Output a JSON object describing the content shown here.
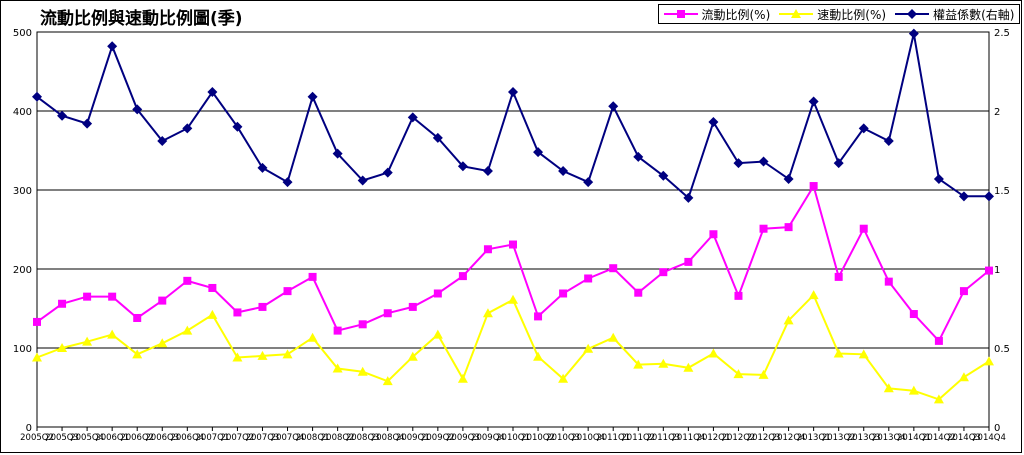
{
  "title": "流動比例與速動比例圖(季)",
  "legend_position": "top-right",
  "colors": {
    "current_ratio": "#ff00ff",
    "quick_ratio": "#ffff00",
    "equity_multiplier": "#000080",
    "grid": "#000000"
  },
  "chart_data": {
    "type": "line",
    "title": "流動比例與速動比例圖(季)",
    "xlabel": "",
    "ylabel": "",
    "y_left_lim": [
      0,
      500
    ],
    "y_left_ticks": [
      "0",
      "100",
      "200",
      "300",
      "400",
      "500"
    ],
    "y_right_lim": [
      0,
      2.5
    ],
    "y_right_ticks": [
      "0",
      "0.5",
      "1",
      "1.5",
      "2",
      "2.5"
    ],
    "grid": true,
    "categories": [
      "2005Q2",
      "2005Q3",
      "2005Q4",
      "2006Q1",
      "2006Q2",
      "2006Q3",
      "2006Q4",
      "2007Q1",
      "2007Q2",
      "2007Q3",
      "2007Q4",
      "2008Q1",
      "2008Q2",
      "2008Q3",
      "2008Q4",
      "2009Q1",
      "2009Q2",
      "2009Q3",
      "2009Q4",
      "2010Q1",
      "2010Q2",
      "2010Q3",
      "2010Q4",
      "2011Q1",
      "2011Q2",
      "2011Q3",
      "2011Q4",
      "2012Q1",
      "2012Q2",
      "2012Q3",
      "2012Q4",
      "2013Q1",
      "2013Q2",
      "2013Q3",
      "2013Q4",
      "2014Q1",
      "2014Q2",
      "2014Q3",
      "2014Q4"
    ],
    "series": [
      {
        "name": "流動比例(%)",
        "axis": "left",
        "marker": "square",
        "values": [
          133,
          156,
          165,
          165,
          138,
          160,
          185,
          176,
          145,
          152,
          172,
          190,
          122,
          130,
          144,
          152,
          169,
          191,
          225,
          231,
          140,
          169,
          188,
          201,
          170,
          196,
          209,
          244,
          166,
          251,
          253,
          305,
          190,
          251,
          184,
          143,
          109,
          172,
          198
        ]
      },
      {
        "name": "速動比例(%)",
        "axis": "left",
        "marker": "triangle",
        "values": [
          88,
          100,
          108,
          117,
          92,
          106,
          122,
          142,
          88,
          90,
          92,
          113,
          74,
          70,
          58,
          89,
          117,
          61,
          144,
          161,
          89,
          61,
          99,
          113,
          79,
          80,
          75,
          93,
          67,
          66,
          135,
          167,
          93,
          92,
          49,
          46,
          35,
          63,
          83
        ]
      },
      {
        "name": "權益係數(右軸)",
        "axis": "right",
        "marker": "diamond",
        "values": [
          2.09,
          1.97,
          1.92,
          2.41,
          2.01,
          1.81,
          1.89,
          2.12,
          1.9,
          1.64,
          1.55,
          2.09,
          1.73,
          1.56,
          1.61,
          1.96,
          1.83,
          1.65,
          1.62,
          2.12,
          1.74,
          1.62,
          1.55,
          2.03,
          1.71,
          1.59,
          1.45,
          1.93,
          1.67,
          1.68,
          1.57,
          2.06,
          1.67,
          1.89,
          1.81,
          2.49,
          1.57,
          1.46,
          1.46
        ]
      }
    ]
  }
}
